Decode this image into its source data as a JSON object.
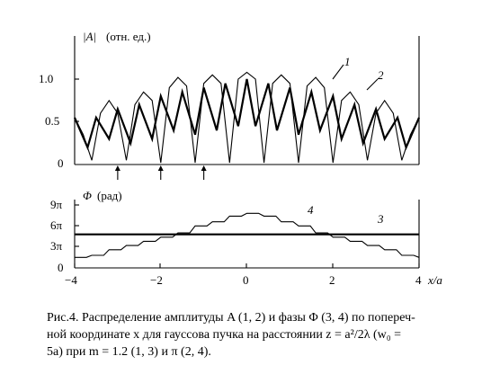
{
  "chart_data": [
    {
      "type": "line",
      "ylabel_prefix": "|A|",
      "ylabel_units": "(отн. ед.)",
      "yticks": [
        "1.0",
        "0.5",
        "0"
      ],
      "ylim": [
        0,
        1.3
      ],
      "xlim": [
        -4,
        4
      ],
      "series": [
        {
          "name": "1",
          "x": [
            -4.0,
            -3.8,
            -3.6,
            -3.4,
            -3.2,
            -3.0,
            -2.8,
            -2.6,
            -2.4,
            -2.2,
            -2.0,
            -1.8,
            -1.6,
            -1.4,
            -1.2,
            -1.0,
            -0.8,
            -0.6,
            -0.4,
            -0.2,
            0.0,
            0.2,
            0.4,
            0.6,
            0.8,
            1.0,
            1.2,
            1.4,
            1.6,
            1.8,
            2.0,
            2.2,
            2.4,
            2.6,
            2.8,
            3.0,
            3.2,
            3.4,
            3.6,
            3.8,
            4.0
          ],
          "y": [
            0.55,
            0.35,
            0.05,
            0.6,
            0.75,
            0.6,
            0.05,
            0.7,
            0.85,
            0.75,
            0.02,
            0.9,
            1.02,
            0.92,
            0.02,
            0.95,
            1.05,
            0.95,
            0.02,
            1.0,
            1.08,
            1.0,
            0.02,
            0.95,
            1.05,
            0.95,
            0.02,
            0.92,
            1.02,
            0.9,
            0.02,
            0.75,
            0.85,
            0.7,
            0.05,
            0.6,
            0.75,
            0.6,
            0.05,
            0.35,
            0.55
          ]
        },
        {
          "name": "2",
          "x": [
            -4.0,
            -3.7,
            -3.5,
            -3.2,
            -3.0,
            -2.7,
            -2.5,
            -2.2,
            -2.0,
            -1.7,
            -1.5,
            -1.2,
            -1.0,
            -0.7,
            -0.5,
            -0.2,
            0.0,
            0.2,
            0.5,
            0.7,
            1.0,
            1.2,
            1.5,
            1.7,
            2.0,
            2.2,
            2.5,
            2.7,
            3.0,
            3.2,
            3.5,
            3.7,
            4.0
          ],
          "y": [
            0.55,
            0.2,
            0.55,
            0.3,
            0.65,
            0.25,
            0.7,
            0.3,
            0.8,
            0.4,
            0.85,
            0.35,
            0.9,
            0.4,
            0.95,
            0.45,
            1.0,
            0.45,
            0.95,
            0.4,
            0.9,
            0.35,
            0.85,
            0.4,
            0.8,
            0.3,
            0.7,
            0.25,
            0.65,
            0.3,
            0.55,
            0.2,
            0.55
          ]
        }
      ],
      "arrows_x": [
        -3,
        -2,
        -1
      ]
    },
    {
      "type": "line",
      "ylabel_prefix": "Φ",
      "ylabel_units": "(рад)",
      "yticks": [
        "9π",
        "6π",
        "3π",
        "0"
      ],
      "xticks": [
        "−4",
        "−2",
        "0",
        "2",
        "4"
      ],
      "xlabel": "x/a",
      "ylim": [
        0,
        10
      ],
      "xlim": [
        -4,
        4
      ],
      "series": [
        {
          "name": "3",
          "x": [
            -4,
            4
          ],
          "y": [
            4.8,
            4.8
          ]
        },
        {
          "name": "4",
          "x": [
            -4.0,
            -3.6,
            -3.2,
            -2.8,
            -2.4,
            -2.0,
            -1.6,
            -1.2,
            -0.8,
            -0.4,
            0.0,
            0.4,
            0.8,
            1.2,
            1.6,
            2.0,
            2.4,
            2.8,
            3.2,
            3.6,
            4.0
          ],
          "y": [
            1.5,
            1.8,
            2.6,
            3.2,
            3.8,
            4.4,
            5.0,
            6.0,
            6.6,
            7.4,
            7.8,
            7.4,
            6.6,
            6.0,
            5.0,
            4.4,
            3.8,
            3.2,
            2.6,
            1.8,
            1.5
          ]
        }
      ]
    }
  ],
  "caption": {
    "line1": "Рис.4.  Распределение амплитуды A (1, 2) и фазы Φ (3, 4) по попереч-",
    "line2": "ной координате x для гауссова пучка на расстоянии z = a²/2λ (w₀ =",
    "line3": "5a) при m = 1.2 (1, 3) и π (2, 4)."
  }
}
